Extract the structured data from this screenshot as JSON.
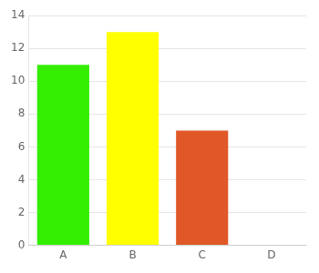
{
  "chart_data": {
    "type": "bar",
    "categories": [
      "A",
      "B",
      "C",
      "D"
    ],
    "values": [
      11,
      13,
      7,
      0
    ],
    "colors": [
      "#33ee00",
      "#ffff00",
      "#e05828",
      "#e8e8e8"
    ],
    "ylim": [
      0,
      14
    ],
    "yticks": [
      0,
      2,
      4,
      6,
      8,
      10,
      12,
      14
    ],
    "grid": true
  }
}
